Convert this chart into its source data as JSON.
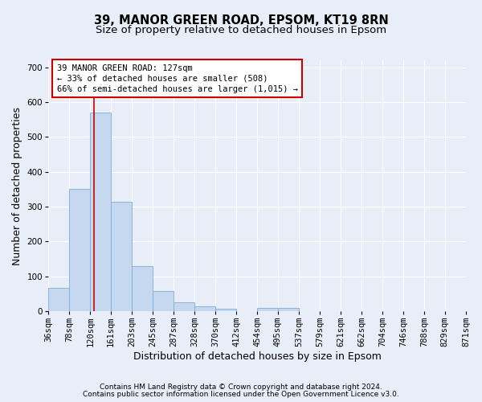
{
  "title_line1": "39, MANOR GREEN ROAD, EPSOM, KT19 8RN",
  "title_line2": "Size of property relative to detached houses in Epsom",
  "xlabel": "Distribution of detached houses by size in Epsom",
  "ylabel": "Number of detached properties",
  "footnote1": "Contains HM Land Registry data © Crown copyright and database right 2024.",
  "footnote2": "Contains public sector information licensed under the Open Government Licence v3.0.",
  "bin_edges": [
    36,
    78,
    120,
    161,
    203,
    245,
    287,
    328,
    370,
    412,
    454,
    495,
    537,
    579,
    621,
    662,
    704,
    746,
    788,
    829,
    871
  ],
  "bar_heights": [
    68,
    350,
    570,
    315,
    130,
    57,
    25,
    14,
    8,
    0,
    9,
    9,
    0,
    0,
    0,
    0,
    0,
    0,
    0,
    0
  ],
  "bar_color": "#c5d8f0",
  "bar_edge_color": "#7bafd4",
  "vline_x": 127,
  "vline_color": "#cc0000",
  "annotation_line1": "39 MANOR GREEN ROAD: 127sqm",
  "annotation_line2": "← 33% of detached houses are smaller (508)",
  "annotation_line3": "66% of semi-detached houses are larger (1,015) →",
  "annotation_box_color": "#ffffff",
  "annotation_box_edge": "#cc0000",
  "ylim": [
    0,
    720
  ],
  "yticks": [
    0,
    100,
    200,
    300,
    400,
    500,
    600,
    700
  ],
  "background_color": "#e8eef8",
  "grid_color": "#ffffff",
  "title_fontsize": 10.5,
  "subtitle_fontsize": 9.5,
  "axis_label_fontsize": 9,
  "tick_fontsize": 7.5,
  "footnote_fontsize": 6.5
}
